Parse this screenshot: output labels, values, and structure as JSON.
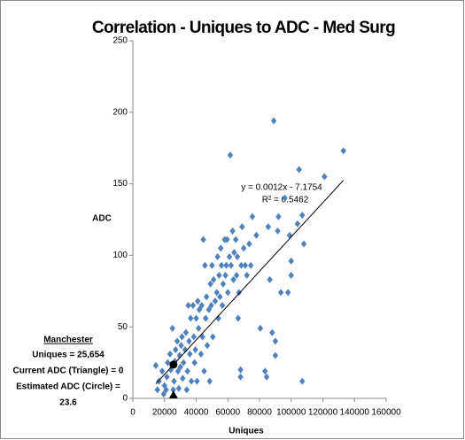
{
  "chart_data": {
    "type": "scatter",
    "title": "Correlation - Uniques to ADC - Med Surg",
    "x_label": "Uniques",
    "y_label": "ADC",
    "xlim": [
      0,
      160000
    ],
    "xticks": [
      0,
      20000,
      40000,
      60000,
      80000,
      100000,
      120000,
      140000,
      160000
    ],
    "ylim": [
      0,
      250
    ],
    "yticks": [
      0,
      50,
      100,
      150,
      200,
      250
    ],
    "grid": false,
    "series": [
      {
        "name": "ADC",
        "color": "#4f81bd",
        "x": [
          14500,
          15500,
          16500,
          18500,
          19500,
          20000,
          21000,
          21500,
          22000,
          23500,
          24000,
          25000,
          25500,
          26000,
          26500,
          27000,
          28000,
          28500,
          29000,
          29500,
          30000,
          30500,
          31000,
          31500,
          32000,
          33000,
          33500,
          34000,
          34500,
          35000,
          35500,
          36000,
          36500,
          37000,
          38000,
          38500,
          39000,
          39500,
          40000,
          40500,
          41000,
          41500,
          42000,
          43000,
          43500,
          44000,
          44500,
          45000,
          45500,
          46000,
          46500,
          47000,
          48000,
          48500,
          49000,
          49500,
          50000,
          50500,
          51000,
          52000,
          53000,
          53500,
          54000,
          54500,
          55000,
          55500,
          56000,
          56500,
          57000,
          58000,
          58500,
          59000,
          59500,
          60000,
          61000,
          61500,
          62000,
          63000,
          63500,
          64000,
          65000,
          65500,
          66000,
          66500,
          67000,
          68500,
          69000,
          70000,
          71000,
          72000,
          73500,
          74500,
          75500,
          78000,
          80500,
          83500,
          84500,
          85500,
          86500,
          88000,
          89000,
          90000,
          91500,
          93500,
          92000,
          90000,
          96000,
          99000,
          100000,
          98000,
          105000,
          107000,
          104000,
          108000,
          107000,
          121000,
          133000,
          100000,
          68000,
          68000
        ],
        "values": [
          23,
          6,
          12,
          19,
          3,
          9,
          6,
          15,
          25,
          31,
          20,
          49,
          6,
          12,
          26,
          34,
          40,
          19,
          7,
          30,
          22,
          37,
          43,
          14,
          25,
          34,
          46,
          6,
          19,
          65,
          40,
          31,
          56,
          12,
          65,
          43,
          25,
          34,
          56,
          12,
          68,
          49,
          62,
          31,
          65,
          43,
          111,
          19,
          93,
          56,
          71,
          37,
          62,
          12,
          80,
          65,
          93,
          43,
          83,
          68,
          74,
          99,
          56,
          86,
          71,
          105,
          93,
          65,
          80,
          111,
          86,
          93,
          111,
          74,
          99,
          170,
          93,
          117,
          83,
          102,
          111,
          86,
          99,
          56,
          74,
          93,
          120,
          105,
          93,
          86,
          108,
          93,
          127,
          114,
          49,
          19,
          15,
          120,
          83,
          46,
          194,
          40,
          117,
          74,
          127,
          30,
          140,
          114,
          86,
          74,
          160,
          128,
          122,
          108,
          12,
          155,
          173,
          96,
          15,
          20
        ]
      }
    ],
    "trendline": {
      "slope": 0.0012,
      "intercept": -7.1754,
      "label": "y = 0.0012x - 7.1754",
      "r2": 0.5462,
      "r2_label": "R² = 0.5462"
    },
    "markers": [
      {
        "x": 25654,
        "y": 0,
        "shape": "triangle"
      },
      {
        "x": 25654,
        "y": 23.6,
        "shape": "circle"
      }
    ],
    "annotations": [
      "Manchester",
      "Uniques = 25,654",
      "Current ADC (Triangle) = 0",
      "Estimated ADC (Circle) =",
      "23.6"
    ]
  }
}
